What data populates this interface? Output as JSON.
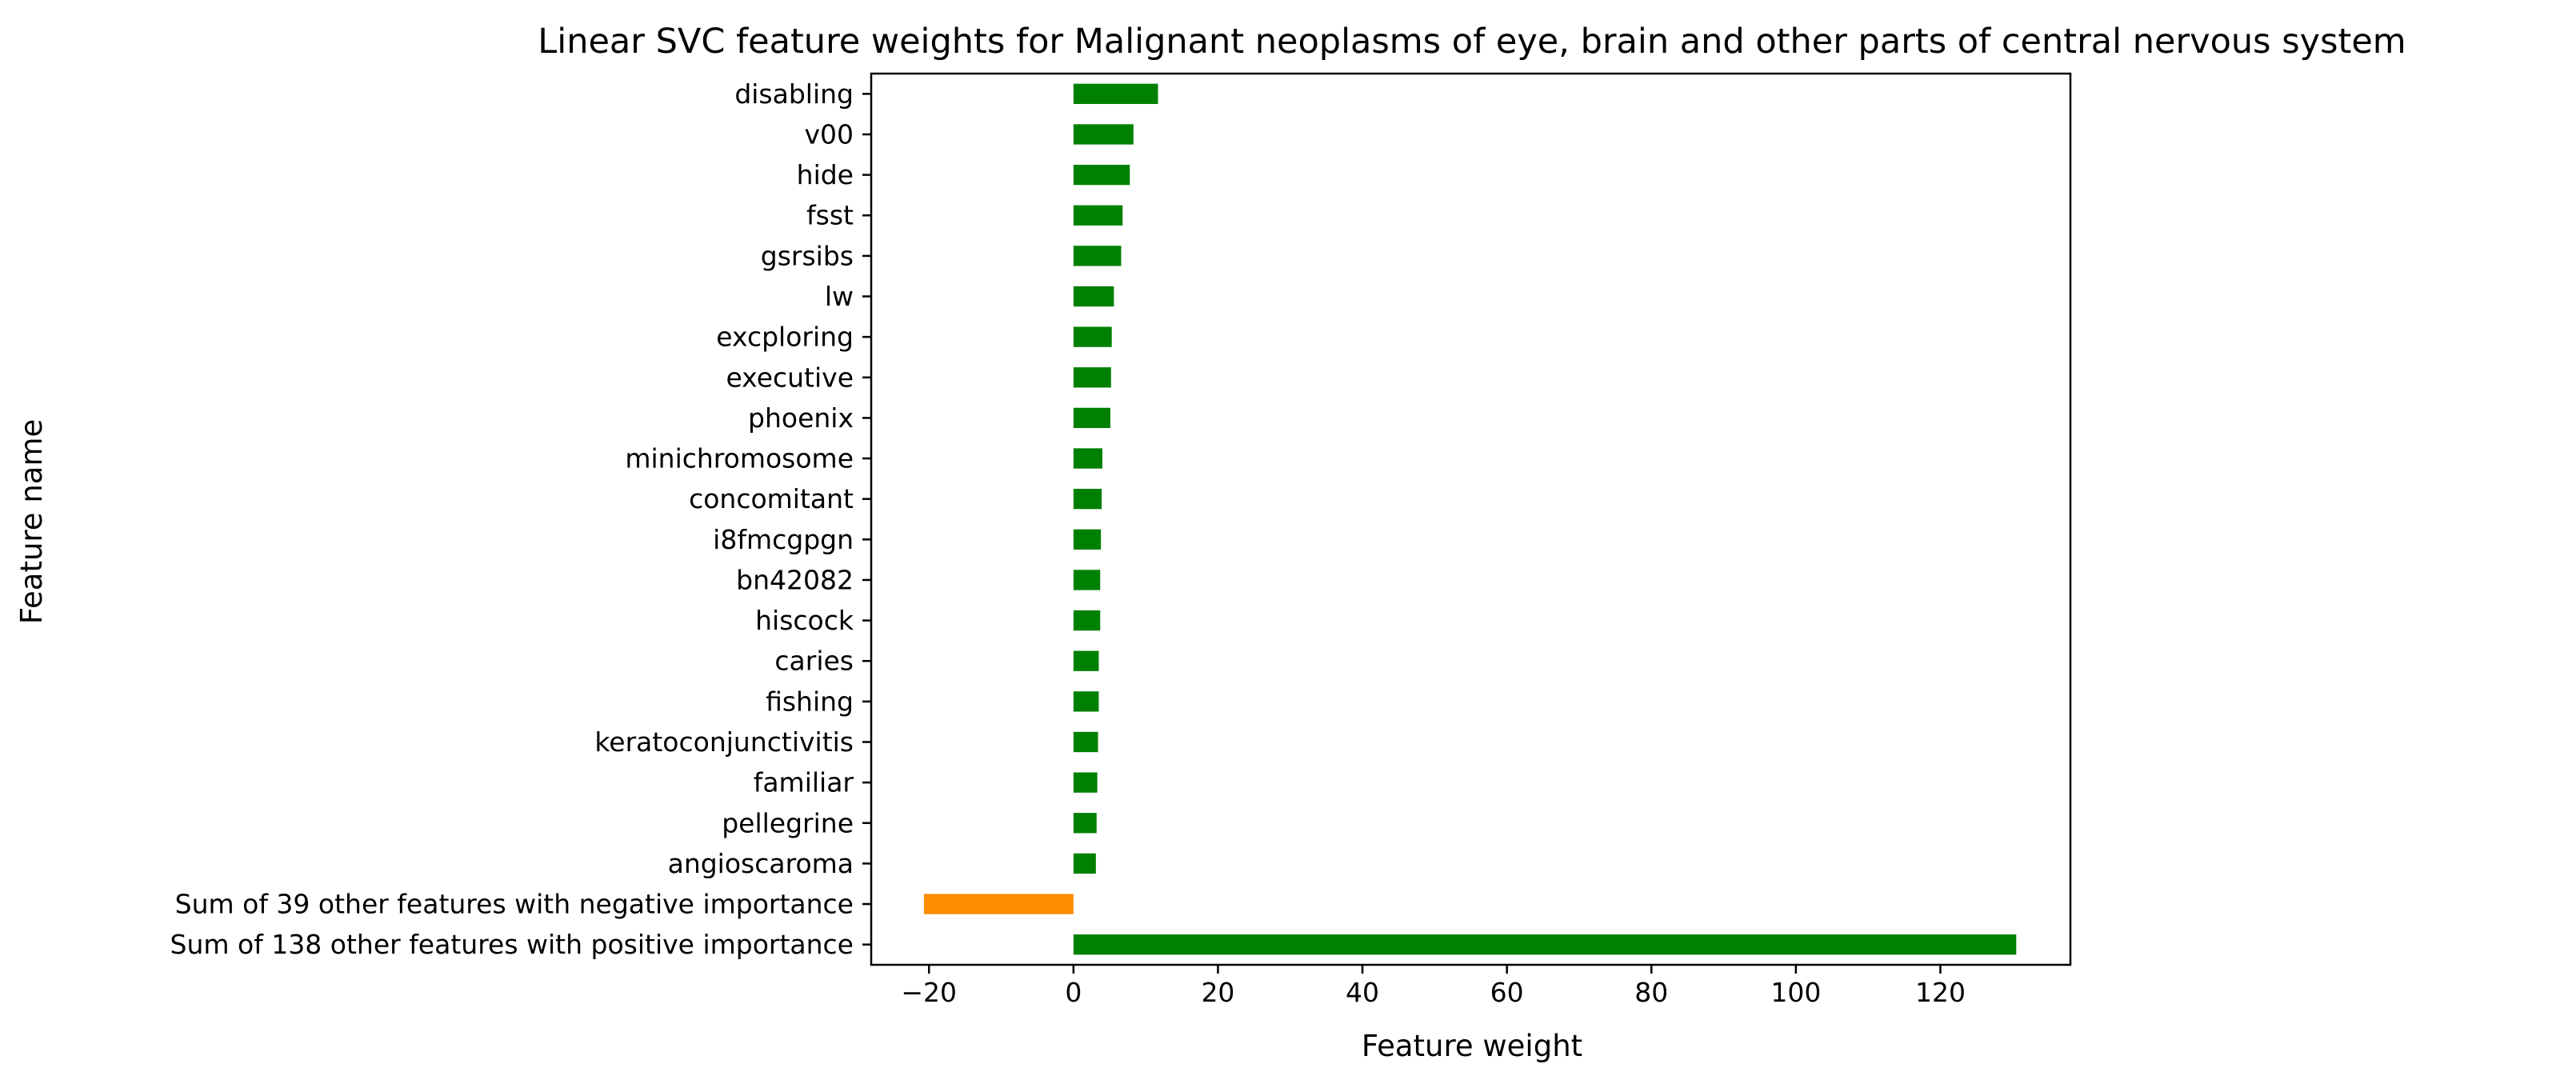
{
  "chart_data": {
    "type": "bar",
    "orientation": "horizontal",
    "title": "Linear SVC feature weights for Malignant neoplasms of eye, brain and other parts of central nervous system",
    "xlabel": "Feature weight",
    "ylabel": "Feature name",
    "xlim": [
      -28,
      138
    ],
    "xticks": [
      -20,
      0,
      20,
      40,
      60,
      80,
      100,
      120
    ],
    "xtick_labels": [
      "−20",
      "0",
      "20",
      "40",
      "60",
      "80",
      "100",
      "120"
    ],
    "grid": false,
    "legend": "none",
    "colors": {
      "positive": "#008000",
      "negative": "#ff8c00"
    },
    "categories": [
      "disabling",
      "v00",
      "hide",
      "fsst",
      "gsrsibs",
      "lw",
      "excploring",
      "executive",
      "phoenix",
      "minichromosome",
      "concomitant",
      "i8fmcgpgn",
      "bn42082",
      "hiscock",
      "caries",
      "fishing",
      "keratoconjunctivitis",
      "familiar",
      "pellegrine",
      "angioscaroma",
      "Sum of 39 other features with negative importance",
      "Sum of 138 other features with positive importance"
    ],
    "values": [
      11.7,
      8.3,
      7.8,
      6.8,
      6.6,
      5.6,
      5.3,
      5.2,
      5.1,
      4.0,
      3.9,
      3.8,
      3.7,
      3.7,
      3.5,
      3.5,
      3.4,
      3.3,
      3.2,
      3.1,
      -20.7,
      130.5
    ]
  }
}
